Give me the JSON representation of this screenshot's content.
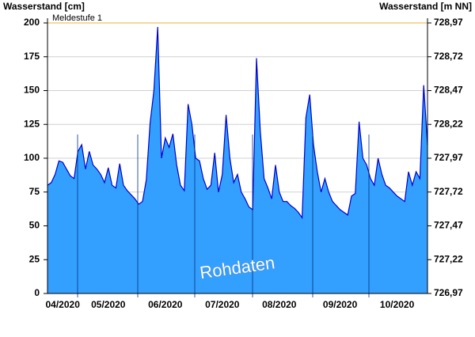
{
  "chart_data": {
    "type": "area",
    "y_label": "Wasserstand [cm]",
    "y2_label": "Wasserstand [m NN]",
    "categories": [
      null,
      null,
      null,
      null,
      "04/2020",
      null,
      null,
      null,
      null,
      null,
      null,
      null,
      null,
      null,
      null,
      null,
      "05/2020",
      null,
      null,
      null,
      null,
      null,
      null,
      null,
      null,
      null,
      null,
      null,
      null,
      null,
      null,
      "06/2020",
      null,
      null,
      null,
      null,
      null,
      null,
      null,
      null,
      null,
      null,
      null,
      null,
      null,
      null,
      "07/2020",
      null,
      null,
      null,
      null,
      null,
      null,
      null,
      null,
      null,
      null,
      null,
      null,
      null,
      null,
      "08/2020",
      null,
      null,
      null,
      null,
      null,
      null,
      null,
      null,
      null,
      null,
      null,
      null,
      null,
      null,
      null,
      "09/2020",
      null,
      null,
      null,
      null,
      null,
      null,
      null,
      null,
      null,
      null,
      null,
      null,
      null,
      null,
      "10/2020",
      null,
      null,
      null,
      null,
      null,
      null,
      null,
      null
    ],
    "series": [
      {
        "color": "#0000cc",
        "fill": "#33a0ff",
        "values": [
          80,
          82,
          88,
          98,
          97,
          92,
          87,
          85,
          105,
          110,
          92,
          105,
          95,
          92,
          88,
          82,
          93,
          80,
          78,
          96,
          80,
          76,
          73,
          70,
          66,
          68,
          84,
          126,
          150,
          197,
          100,
          115,
          108,
          118,
          95,
          80,
          76,
          140,
          125,
          100,
          98,
          85,
          77,
          80,
          104,
          75,
          88,
          132,
          100,
          82,
          88,
          75,
          70,
          64,
          62,
          174,
          120,
          85,
          78,
          70,
          95,
          75,
          68,
          68,
          65,
          63,
          60,
          56,
          130,
          147,
          110,
          90,
          75,
          85,
          75,
          68,
          65,
          62,
          60,
          58,
          72,
          74,
          127,
          100,
          95,
          85,
          80,
          100,
          88,
          80,
          78,
          75,
          72,
          70,
          68,
          90,
          80,
          90,
          85,
          154,
          110
        ]
      }
    ],
    "ylim": [
      0,
      200
    ],
    "yticks": [
      0,
      25,
      50,
      75,
      100,
      125,
      150,
      175,
      200
    ],
    "y2lim": [
      726.97,
      728.97
    ],
    "y2ticks": [
      {
        "value": 726.97,
        "label": "726,97"
      },
      {
        "value": 727.22,
        "label": "727,22"
      },
      {
        "value": 727.47,
        "label": "727,47"
      },
      {
        "value": 727.72,
        "label": "727,72"
      },
      {
        "value": 727.97,
        "label": "727,97"
      },
      {
        "value": 728.22,
        "label": "728,22"
      },
      {
        "value": 728.47,
        "label": "728,47"
      },
      {
        "value": 728.72,
        "label": "728,72"
      },
      {
        "value": 728.97,
        "label": "728,97"
      }
    ],
    "threshold": {
      "label": "Meldestufe 1",
      "value": 200,
      "color": "#f0c060"
    },
    "watermark": "Rohdaten",
    "grid": true
  }
}
